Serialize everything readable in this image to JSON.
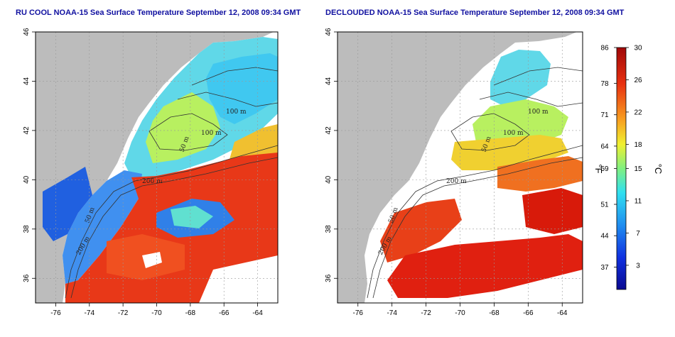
{
  "panels": [
    {
      "title": "RU COOL NOAA-15 Sea Surface Temperature September 12, 2008 09:34 GMT",
      "contour_labels": [
        "100 m",
        "100 m",
        "50 m",
        "200 m",
        "50 m",
        "200 m"
      ]
    },
    {
      "title": "DECLOUDED NOAA-15 Sea Surface Temperature September 12, 2008 09:34 GMT",
      "contour_labels": [
        "100 m",
        "100 m",
        "50 m",
        "200 m",
        "50 m",
        "200 m"
      ]
    }
  ],
  "axes": {
    "x_ticks": [
      "-76",
      "-74",
      "-72",
      "-70",
      "-68",
      "-66",
      "-64"
    ],
    "y_ticks": [
      "46",
      "44",
      "42",
      "40",
      "38",
      "36"
    ],
    "x_range": [
      -77.2,
      -62.8
    ],
    "y_range": [
      35.0,
      46.0
    ]
  },
  "colorbar": {
    "fahrenheit_ticks": [
      "86",
      "78",
      "71",
      "64",
      "59",
      "51",
      "44",
      "37"
    ],
    "celsius_ticks": [
      "30",
      "26",
      "22",
      "18",
      "15",
      "11",
      "7",
      "3"
    ],
    "f_label": "°F",
    "c_label": "°C",
    "range_c": [
      0,
      30
    ]
  },
  "colors": {
    "land": "#bcbcbc",
    "title_blue": "#1010a0",
    "warm": "#d81a0a",
    "cold": "#0a14a0"
  }
}
